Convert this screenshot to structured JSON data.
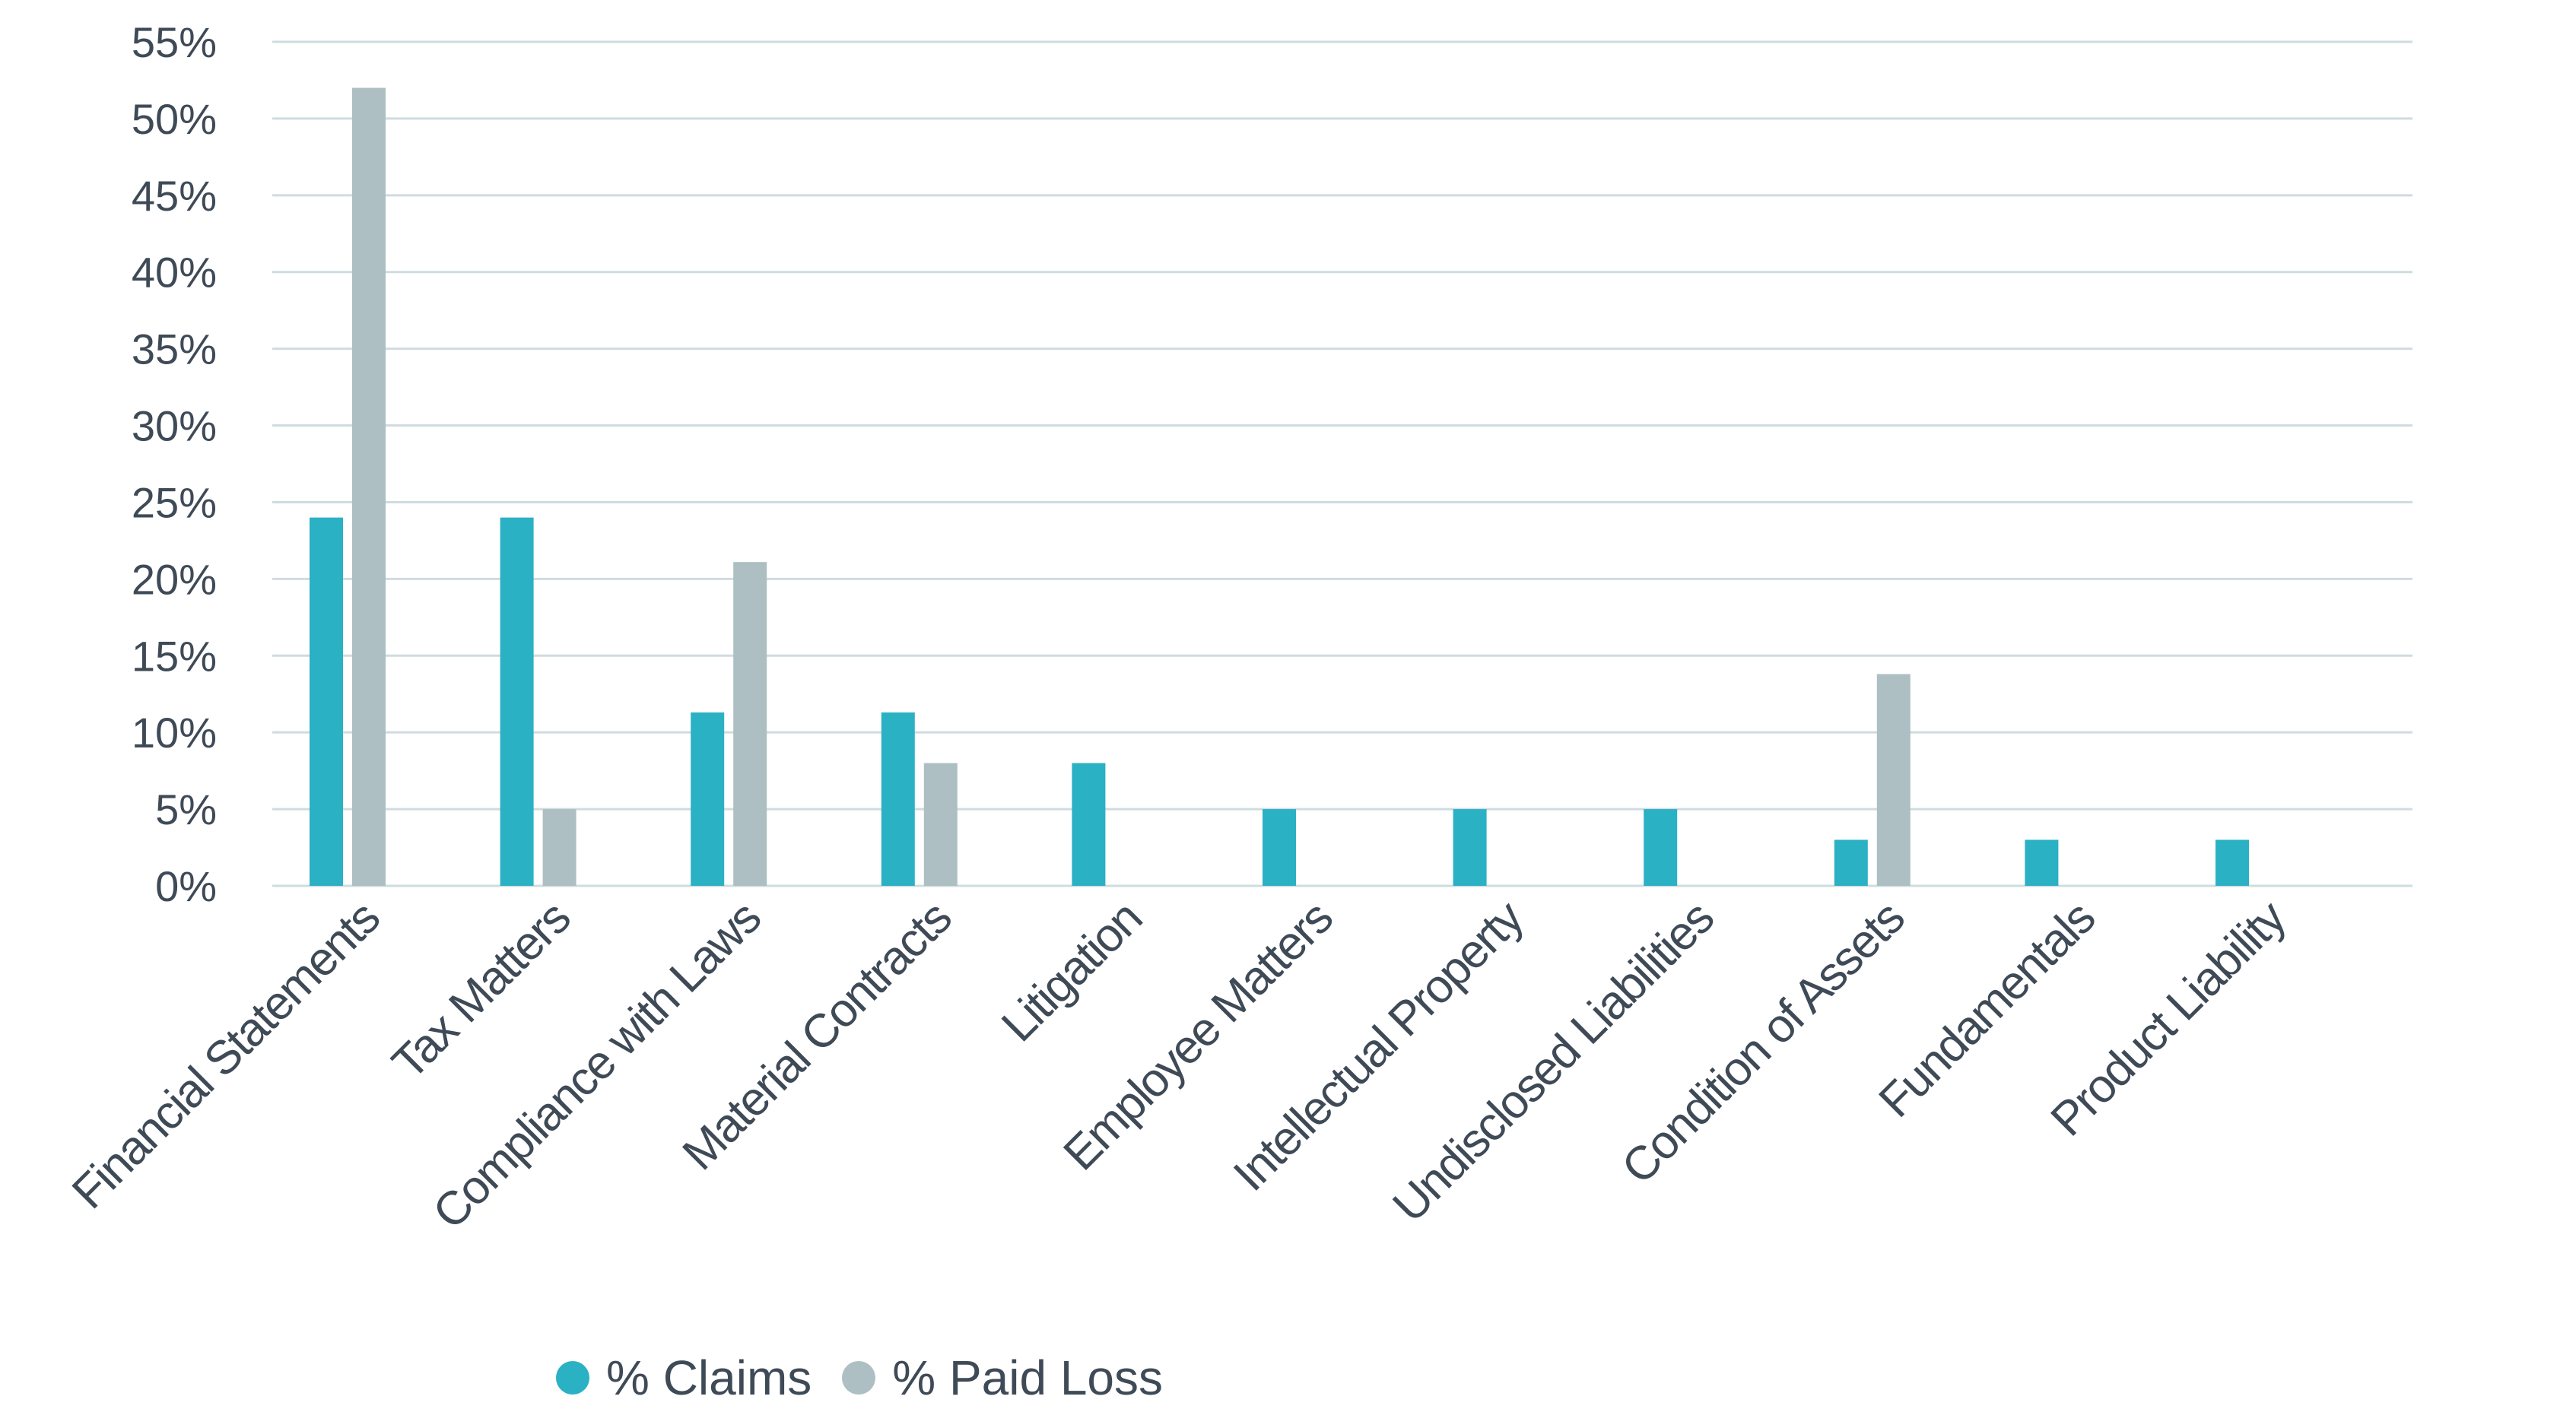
{
  "chart_data": {
    "type": "bar",
    "categories": [
      "Financial Statements",
      "Tax Matters",
      "Compliance with Laws",
      "Material Contracts",
      "Litigation",
      "Employee Matters",
      "Intellectual Property",
      "Undisclosed Liabilities",
      "Condition of Assets",
      "Fundamentals",
      "Product Liability"
    ],
    "series": [
      {
        "name": "% Claims",
        "color": "#2bb1c4",
        "values": [
          24,
          24,
          11.3,
          11.3,
          8,
          5,
          5,
          5,
          3,
          3,
          3
        ]
      },
      {
        "name": "% Paid Loss",
        "color": "#adbfc3",
        "values": [
          52,
          5,
          21.1,
          8,
          0,
          0,
          0,
          0,
          13.8,
          0,
          0
        ]
      }
    ],
    "y_ticks": [
      "0%",
      "5%",
      "10%",
      "15%",
      "20%",
      "25%",
      "30%",
      "35%",
      "40%",
      "45%",
      "50%",
      "55%"
    ],
    "ylim": [
      0,
      55
    ],
    "grid": true,
    "legend_position": "bottom"
  },
  "legend": {
    "claims_label": "% Claims",
    "paid_loss_label": "% Paid Loss"
  }
}
